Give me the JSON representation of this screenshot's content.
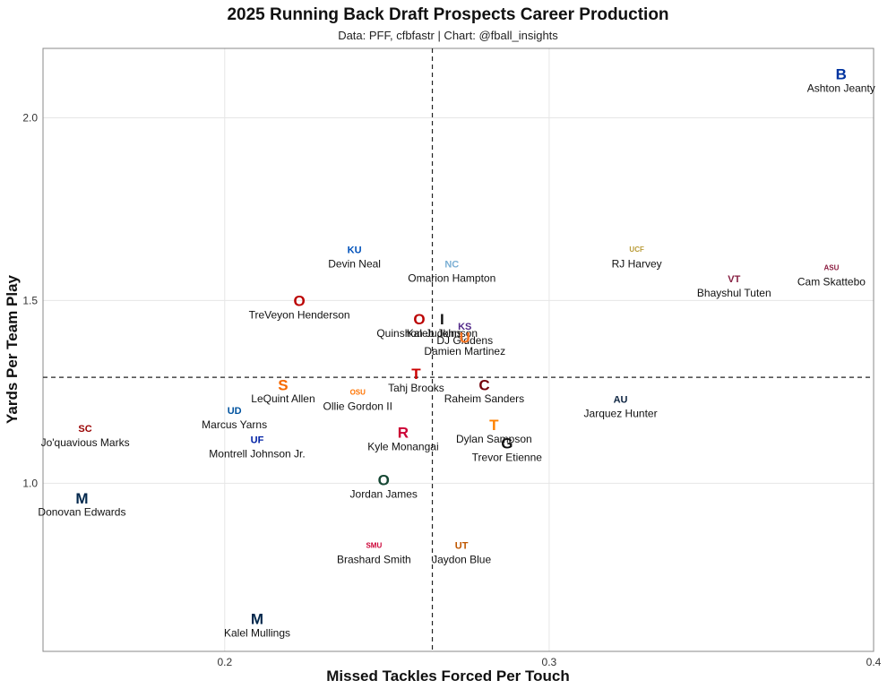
{
  "chart_data": {
    "type": "scatter",
    "title": "2025 Running Back Draft Prospects Career Production",
    "subtitle": "Data: PFF, cfbfastr | Chart: @fball_insights",
    "xlabel": "Missed Tackles Forced Per Touch",
    "ylabel": "Yards Per Team Play",
    "xlim": [
      0.144,
      0.4
    ],
    "ylim": [
      0.54,
      2.19
    ],
    "xticks": [
      0.2,
      0.3,
      0.4
    ],
    "xtick_labels": [
      "0.2",
      "0.3",
      "0.4"
    ],
    "yticks": [
      1.0,
      1.5,
      2.0
    ],
    "ytick_labels": [
      "1.0",
      "1.5",
      "2.0"
    ],
    "grid": true,
    "reference_lines": {
      "vline_x": 0.264,
      "hline_y": 1.29
    },
    "points": [
      {
        "name": "Ashton Jeanty",
        "x": 0.39,
        "y": 2.12,
        "school_mark": "B",
        "color": "#0033A0"
      },
      {
        "name": "RJ Harvey",
        "x": 0.327,
        "y": 1.64,
        "school_mark": "UCF",
        "color": "#BA9B37"
      },
      {
        "name": "Cam Skattebo",
        "x": 0.387,
        "y": 1.59,
        "school_mark": "ASU",
        "color": "#8C1D40"
      },
      {
        "name": "Bhayshul Tuten",
        "x": 0.357,
        "y": 1.56,
        "school_mark": "VT",
        "color": "#861F41"
      },
      {
        "name": "Devin Neal",
        "x": 0.24,
        "y": 1.64,
        "school_mark": "KU",
        "color": "#0051BA"
      },
      {
        "name": "Omarion Hampton",
        "x": 0.27,
        "y": 1.6,
        "school_mark": "NC",
        "color": "#7BAFD4"
      },
      {
        "name": "TreVeyon Henderson",
        "x": 0.223,
        "y": 1.5,
        "school_mark": "O",
        "color": "#BB0000"
      },
      {
        "name": "Quinshon Judkins",
        "x": 0.26,
        "y": 1.45,
        "school_mark": "O",
        "color": "#BB0000"
      },
      {
        "name": "Kaleb Johnson",
        "x": 0.267,
        "y": 1.45,
        "school_mark": "I",
        "color": "#111111"
      },
      {
        "name": "DJ Giddens",
        "x": 0.274,
        "y": 1.43,
        "school_mark": "KS",
        "color": "#512888"
      },
      {
        "name": "Damien Martinez",
        "x": 0.274,
        "y": 1.4,
        "school_mark": "U",
        "color": "#F47321"
      },
      {
        "name": "Tahj Brooks",
        "x": 0.259,
        "y": 1.3,
        "school_mark": "T",
        "color": "#CC0000"
      },
      {
        "name": "Raheim Sanders",
        "x": 0.28,
        "y": 1.27,
        "school_mark": "C",
        "color": "#73000A"
      },
      {
        "name": "LeQuint Allen",
        "x": 0.218,
        "y": 1.27,
        "school_mark": "S",
        "color": "#F76900"
      },
      {
        "name": "Ollie Gordon II",
        "x": 0.241,
        "y": 1.25,
        "school_mark": "OSU",
        "color": "#FF7300"
      },
      {
        "name": "Jarquez Hunter",
        "x": 0.322,
        "y": 1.23,
        "school_mark": "AU",
        "color": "#0C2340"
      },
      {
        "name": "Marcus Yarns",
        "x": 0.203,
        "y": 1.2,
        "school_mark": "UD",
        "color": "#00539F"
      },
      {
        "name": "Dylan Sampson",
        "x": 0.283,
        "y": 1.16,
        "school_mark": "T",
        "color": "#FF8200"
      },
      {
        "name": "Jo'quavious Marks",
        "x": 0.157,
        "y": 1.15,
        "school_mark": "SC",
        "color": "#990000"
      },
      {
        "name": "Kyle Monangai",
        "x": 0.255,
        "y": 1.14,
        "school_mark": "R",
        "color": "#CC0033"
      },
      {
        "name": "Montrell Johnson Jr.",
        "x": 0.21,
        "y": 1.12,
        "school_mark": "UF",
        "color": "#0021A5"
      },
      {
        "name": "Trevor Etienne",
        "x": 0.287,
        "y": 1.11,
        "school_mark": "G",
        "color": "#111111"
      },
      {
        "name": "Jordan James",
        "x": 0.249,
        "y": 1.01,
        "school_mark": "O",
        "color": "#154733"
      },
      {
        "name": "Donovan Edwards",
        "x": 0.156,
        "y": 0.96,
        "school_mark": "M",
        "color": "#00274C"
      },
      {
        "name": "Brashard Smith",
        "x": 0.246,
        "y": 0.83,
        "school_mark": "SMU",
        "color": "#CC0035"
      },
      {
        "name": "Jaydon Blue",
        "x": 0.273,
        "y": 0.83,
        "school_mark": "UT",
        "color": "#BF5700"
      },
      {
        "name": "Kalel Mullings",
        "x": 0.21,
        "y": 0.63,
        "school_mark": "M",
        "color": "#00274C"
      }
    ]
  }
}
